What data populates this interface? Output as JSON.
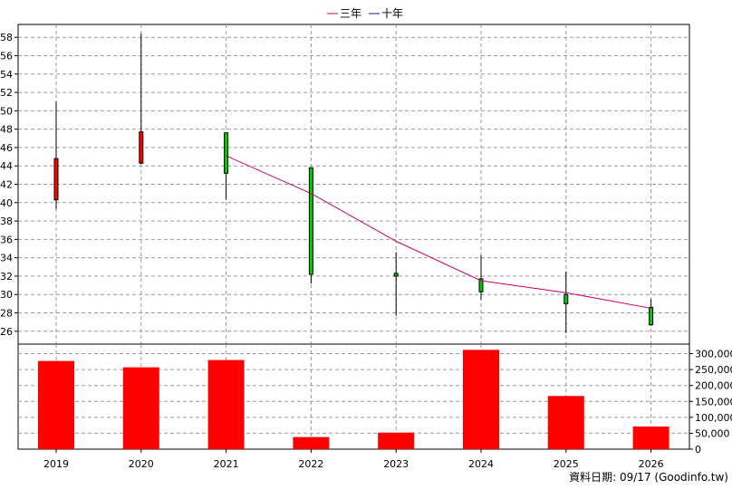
{
  "legend": [
    {
      "label": "三年",
      "color": "#cc0066"
    },
    {
      "label": "十年",
      "color": "#330099"
    }
  ],
  "footer": "資料日期: 09/17  (Goodinfo.tw)",
  "colors": {
    "up_candle": "#ff0000",
    "down_candle": "#00cc00",
    "volume_bar": "#ff0000",
    "grid": "#999999"
  },
  "chart_data": [
    {
      "type": "candlestick",
      "categories": [
        "2019",
        "2020",
        "2021",
        "2022",
        "2023",
        "2024",
        "2025",
        "2026"
      ],
      "ylim": [
        24.6,
        59.4
      ],
      "y_ticks": [
        26,
        28,
        30,
        32,
        34,
        36,
        38,
        40,
        42,
        44,
        46,
        48,
        50,
        52,
        54,
        56,
        58
      ],
      "grid": true,
      "candles": [
        {
          "x": "2019",
          "open": 40.3,
          "high": 51.0,
          "low": 39.3,
          "close": 44.8
        },
        {
          "x": "2020",
          "open": 44.3,
          "high": 58.4,
          "low": 44.2,
          "close": 47.7
        },
        {
          "x": "2021",
          "open": 47.6,
          "high": 47.6,
          "low": 40.3,
          "close": 43.2
        },
        {
          "x": "2022",
          "open": 43.8,
          "high": 43.8,
          "low": 31.2,
          "close": 32.2
        },
        {
          "x": "2023",
          "open": 32.3,
          "high": 34.6,
          "low": 27.7,
          "close": 32.0
        },
        {
          "x": "2024",
          "open": 31.7,
          "high": 34.3,
          "low": 29.4,
          "close": 30.3
        },
        {
          "x": "2025",
          "open": 30.0,
          "high": 32.5,
          "low": 25.8,
          "close": 29.0
        },
        {
          "x": "2026",
          "open": 28.6,
          "high": 29.5,
          "low": 26.6,
          "close": 26.7
        }
      ],
      "series": [
        {
          "name": "三年",
          "x": [
            "2021",
            "2022",
            "2023",
            "2024",
            "2025",
            "2026"
          ],
          "values": [
            45.1,
            41.0,
            35.8,
            31.5,
            30.2,
            28.5
          ]
        }
      ]
    },
    {
      "type": "bar",
      "categories": [
        "2019",
        "2020",
        "2021",
        "2022",
        "2023",
        "2024",
        "2025",
        "2026"
      ],
      "values": [
        277000,
        257000,
        280000,
        38000,
        52000,
        312000,
        167000,
        71000
      ],
      "ylim": [
        0,
        330000
      ],
      "y_ticks": [
        "0",
        "50,000",
        "100,000",
        "150,000",
        "200,000",
        "250,000",
        "300,000"
      ],
      "y_tick_values": [
        0,
        50000,
        100000,
        150000,
        200000,
        250000,
        300000
      ],
      "x_tick_labels": [
        "2019",
        "2020",
        "2021",
        "2022",
        "2023",
        "2024",
        "2025",
        "2026"
      ]
    }
  ]
}
